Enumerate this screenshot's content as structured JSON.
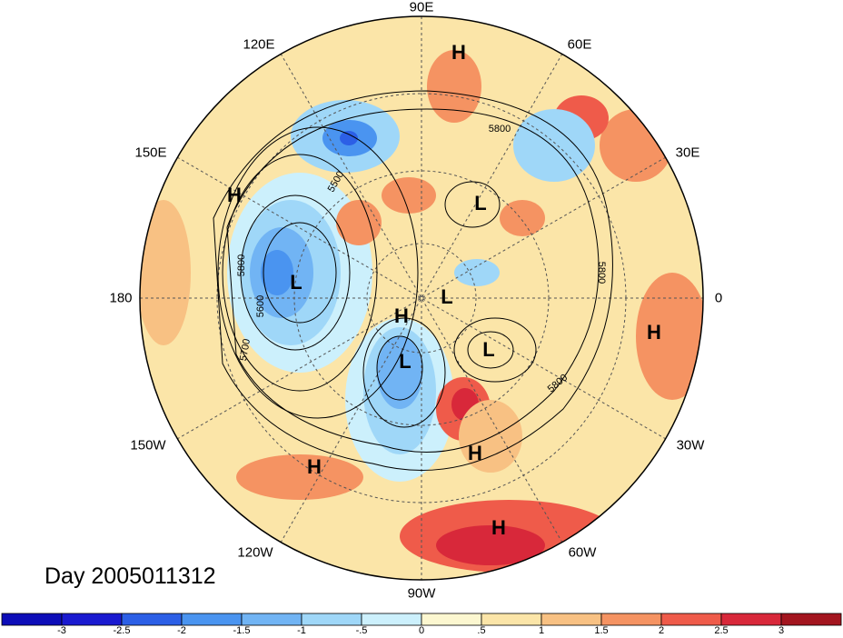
{
  "title": "Day 2005011312",
  "longitude_labels": [
    {
      "text": "90E"
    },
    {
      "text": "60E"
    },
    {
      "text": "30E"
    },
    {
      "text": "0"
    },
    {
      "text": "30W"
    },
    {
      "text": "60W"
    },
    {
      "text": "90W"
    },
    {
      "text": "120W"
    },
    {
      "text": "150W"
    },
    {
      "text": "180"
    },
    {
      "text": "150E"
    },
    {
      "text": "120E"
    }
  ],
  "contour_labels": [
    "5800",
    "5500",
    "5600",
    "5700",
    "5800",
    "5800",
    "5800"
  ],
  "pressure_centers": [
    {
      "type": "H"
    },
    {
      "type": "H"
    },
    {
      "type": "L"
    },
    {
      "type": "L"
    },
    {
      "type": "L"
    },
    {
      "type": "H"
    },
    {
      "type": "L"
    },
    {
      "type": "L"
    },
    {
      "type": "H"
    },
    {
      "type": "H"
    },
    {
      "type": "H"
    },
    {
      "type": "H"
    }
  ],
  "colorbar": {
    "ticks": [
      "-3",
      "-2.5",
      "-2",
      "-1.5",
      "-1",
      "-.5",
      "0",
      ".5",
      "1",
      "1.5",
      "2",
      "2.5",
      "3"
    ],
    "colors": [
      "#1a1ad0",
      "#2c5fe6",
      "#4a94f0",
      "#71b4f4",
      "#9fd7f8",
      "#ccf0fc",
      "#fcf7d0",
      "#fbe5a8",
      "#f8c183",
      "#f59362",
      "#ef5b4a",
      "#d8283a",
      "#a3151f"
    ]
  }
}
